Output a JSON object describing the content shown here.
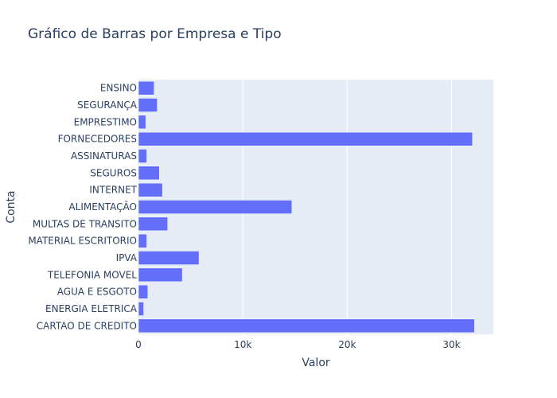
{
  "chart_data": {
    "type": "bar",
    "orientation": "horizontal",
    "title": "Gráfico de Barras por Empresa e Tipo",
    "xlabel": "Valor",
    "ylabel": "Conta",
    "xlim": [
      0,
      34000
    ],
    "xticks": [
      0,
      10000,
      20000,
      30000
    ],
    "xtick_labels": [
      "0",
      "10k",
      "20k",
      "30k"
    ],
    "grid": true,
    "bar_color": "#636efa",
    "plot_bg": "#e5ecf6",
    "categories": [
      "ENSINO",
      "SEGURANÇA",
      "EMPRESTIMO",
      "FORNECEDORES",
      "ASSINATURAS",
      "SEGUROS",
      "INTERNET",
      "ALIMENTAÇÃO",
      "MULTAS DE TRANSITO",
      "MATERIAL ESCRITORIO",
      "IPVA",
      "TELEFONIA MOVEL",
      "AGUA E ESGOTO",
      "ENERGIA ELETRICA",
      "CARTAO DE CREDITO"
    ],
    "values": [
      1500,
      1800,
      700,
      32000,
      800,
      2000,
      2300,
      14700,
      2800,
      800,
      5800,
      4200,
      900,
      500,
      32200
    ]
  }
}
